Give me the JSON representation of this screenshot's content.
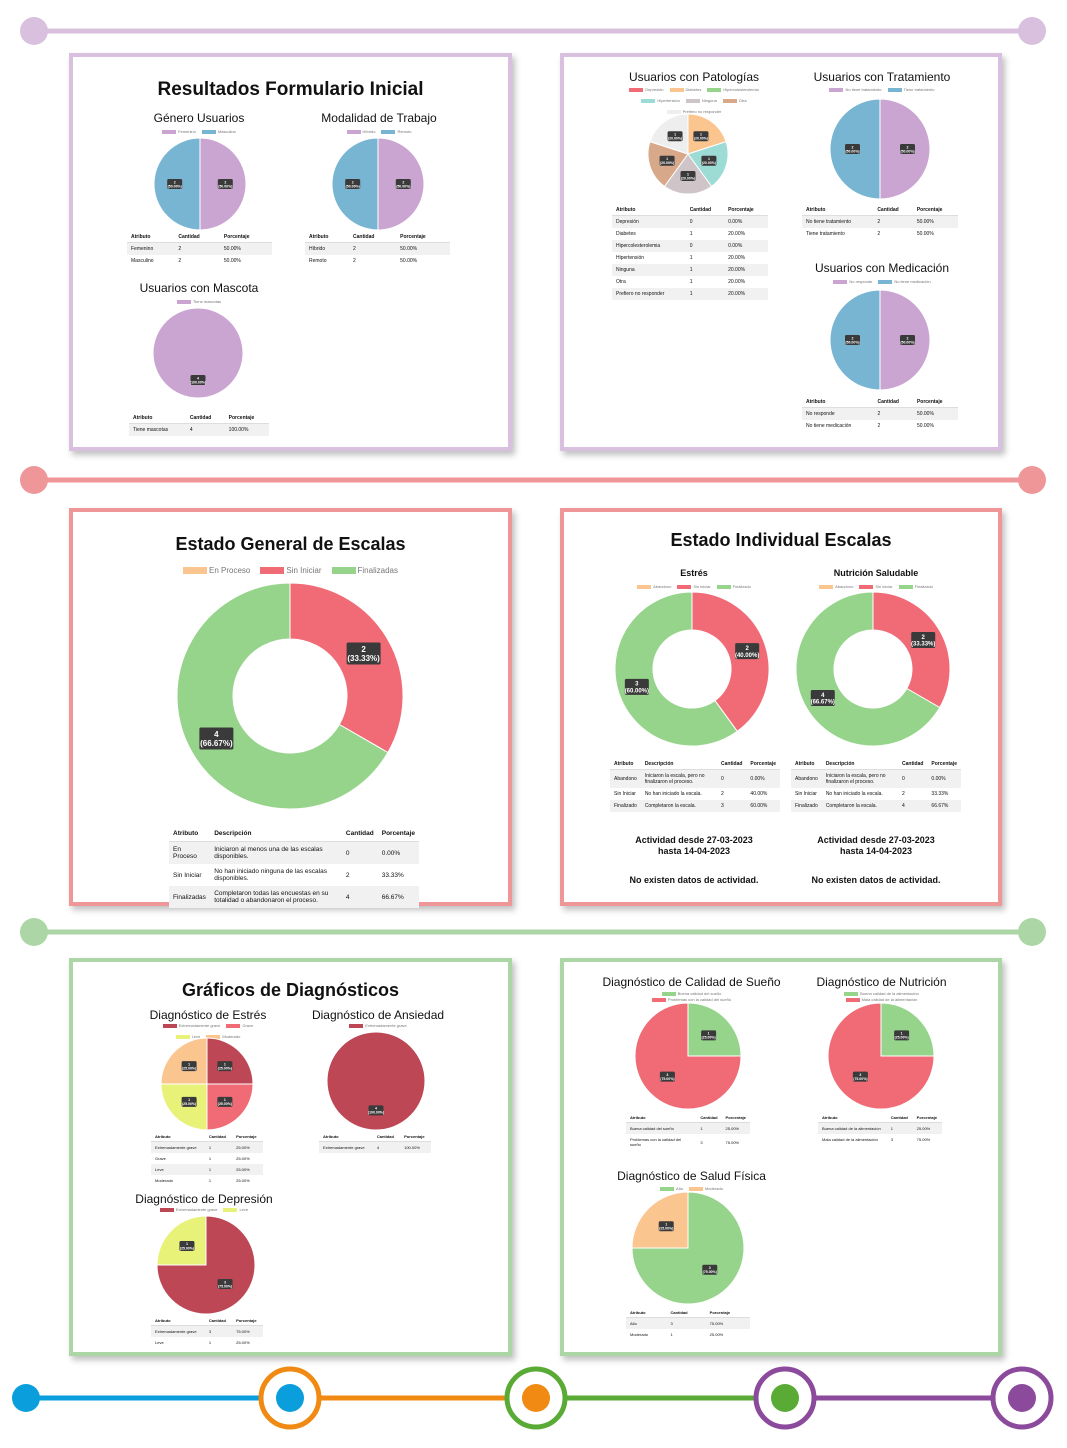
{
  "colors": {
    "purple_line": "#d8c0de",
    "red_line": "#ef9698",
    "green_line": "#acd6a6",
    "pink": "#cba5d2",
    "blue": "#78b5d3",
    "red": "#f06b76",
    "green": "#96d48b",
    "orange": "#fbc58f",
    "dark_red": "#bd4754",
    "yellow": "#e8f278",
    "teal": "#9cdcd5",
    "grey": "#cfc5c9",
    "tan": "#d8a88a",
    "light": "#eeeeee"
  },
  "panel1": {
    "title": "Resultados Formulario Inicial",
    "genero": {
      "title": "Género Usuarios",
      "legend": [
        "Femenino",
        "Masculino"
      ],
      "headers": [
        "Atributo",
        "Cantidad",
        "Porcentaje"
      ],
      "rows": [
        [
          "Femenino",
          "2",
          "50.00%"
        ],
        [
          "Masculino",
          "2",
          "50.00%"
        ]
      ]
    },
    "modalidad": {
      "title": "Modalidad de Trabajo",
      "legend": [
        "Híbrido",
        "Remoto"
      ],
      "headers": [
        "Atributo",
        "Cantidad",
        "Porcentaje"
      ],
      "rows": [
        [
          "Híbrido",
          "2",
          "50.00%"
        ],
        [
          "Remoto",
          "2",
          "50.00%"
        ]
      ]
    },
    "mascota": {
      "title": "Usuarios con Mascota",
      "legend": [
        "Tiene mascotas"
      ],
      "headers": [
        "Atributo",
        "Cantidad",
        "Porcentaje"
      ],
      "rows": [
        [
          "Tiene mascotas",
          "4",
          "100.00%"
        ]
      ]
    }
  },
  "panel2": {
    "patologias": {
      "title": "Usuarios con Patologías",
      "legend": [
        "Depresión",
        "Diabetes",
        "Hipercolesterolemia",
        "Hipertensión",
        "Ninguna",
        "Otra",
        "Prefiero no responder"
      ],
      "headers": [
        "Atributo",
        "Cantidad",
        "Porcentaje"
      ],
      "rows": [
        [
          "Depresión",
          "0",
          "0.00%"
        ],
        [
          "Diabetes",
          "1",
          "20.00%"
        ],
        [
          "Hipercolesterolemia",
          "0",
          "0.00%"
        ],
        [
          "Hipertensión",
          "1",
          "20.00%"
        ],
        [
          "Ninguna",
          "1",
          "20.00%"
        ],
        [
          "Otra",
          "1",
          "20.00%"
        ],
        [
          "Prefiero no responder",
          "1",
          "20.00%"
        ]
      ]
    },
    "tratamiento": {
      "title": "Usuarios con Tratamiento",
      "legend": [
        "No tiene tratamiento",
        "Tiene tratamiento"
      ],
      "headers": [
        "Atributo",
        "Cantidad",
        "Porcentaje"
      ],
      "rows": [
        [
          "No tiene tratamiento",
          "2",
          "50.00%"
        ],
        [
          "Tiene tratamiento",
          "2",
          "50.00%"
        ]
      ]
    },
    "medicacion": {
      "title": "Usuarios con Medicación",
      "legend": [
        "No responde",
        "No tiene medicación"
      ],
      "headers": [
        "Atributo",
        "Cantidad",
        "Porcentaje"
      ],
      "rows": [
        [
          "No responde",
          "2",
          "50.00%"
        ],
        [
          "No tiene medicación",
          "2",
          "50.00%"
        ]
      ]
    }
  },
  "panel3": {
    "title": "Estado General de Escalas",
    "legend": [
      "En Proceso",
      "Sin Iniciar",
      "Finalizadas"
    ],
    "headers": [
      "Atributo",
      "Descripción",
      "Cantidad",
      "Porcentaje"
    ],
    "rows": [
      [
        "En Proceso",
        "Iniciaron al menos una de las escalas disponibles.",
        "0",
        "0.00%"
      ],
      [
        "Sin Iniciar",
        "No han iniciado ninguna de las escalas disponibles.",
        "2",
        "33.33%"
      ],
      [
        "Finalizadas",
        "Completaron todas las encuestas en su totalidad o abandonaron el proceso.",
        "4",
        "66.67%"
      ]
    ]
  },
  "panel4": {
    "title": "Estado Individual Escalas",
    "estres": {
      "title": "Estrés",
      "legend": [
        "Abandono",
        "Sin iniciar",
        "Finalizado"
      ],
      "headers": [
        "Atributo",
        "Descripción",
        "Cantidad",
        "Porcentaje"
      ],
      "rows": [
        [
          "Abandono",
          "Iniciaron la escala, pero no finalizaron el proceso.",
          "0",
          "0.00%"
        ],
        [
          "Sin Iniciar",
          "No han iniciado la escala.",
          "2",
          "40.00%"
        ],
        [
          "Finalizado",
          "Completaron la escala.",
          "3",
          "60.00%"
        ]
      ],
      "activity": "Actividad desde 27-03-2023",
      "activity2": "hasta 14-04-2023",
      "no_data": "No existen datos de actividad."
    },
    "nutricion": {
      "title": "Nutrición Saludable",
      "legend": [
        "Abandono",
        "Sin iniciar",
        "Finalizado"
      ],
      "headers": [
        "Atributo",
        "Descripción",
        "Cantidad",
        "Porcentaje"
      ],
      "rows": [
        [
          "Abandono",
          "Iniciaron la escala, pero no finalizaron el proceso.",
          "0",
          "0.00%"
        ],
        [
          "Sin Iniciar",
          "No han iniciado la escala.",
          "2",
          "33.33%"
        ],
        [
          "Finalizado",
          "Completaron la escala.",
          "4",
          "66.67%"
        ]
      ],
      "activity": "Actividad desde 27-03-2023",
      "activity2": "hasta 14-04-2023",
      "no_data": "No existen datos de actividad."
    }
  },
  "panel5": {
    "title": "Gráficos de Diagnósticos",
    "estres": {
      "title": "Diagnóstico de Estrés",
      "legend": [
        "Extremadamente grave",
        "Grave",
        "Leve",
        "Moderado"
      ],
      "headers": [
        "Atributo",
        "Cantidad",
        "Porcentaje"
      ],
      "rows": [
        [
          "Extremadamente grave",
          "1",
          "25.00%"
        ],
        [
          "Grave",
          "1",
          "25.00%"
        ],
        [
          "Leve",
          "1",
          "25.00%"
        ],
        [
          "Moderado",
          "1",
          "25.00%"
        ]
      ]
    },
    "ansiedad": {
      "title": "Diagnóstico de Ansiedad",
      "legend": [
        "Extremadamente grave"
      ],
      "headers": [
        "Atributo",
        "Cantidad",
        "Porcentaje"
      ],
      "rows": [
        [
          "Extremadamente grave",
          "4",
          "100.00%"
        ]
      ]
    },
    "depresion": {
      "title": "Diagnóstico de Depresión",
      "legend": [
        "Extremadamente grave",
        "Leve"
      ],
      "headers": [
        "Atributo",
        "Cantidad",
        "Porcentaje"
      ],
      "rows": [
        [
          "Extremadamente grave",
          "3",
          "75.00%"
        ],
        [
          "Leve",
          "1",
          "25.00%"
        ]
      ]
    }
  },
  "panel6": {
    "sueno": {
      "title": "Diagnóstico de Calidad de Sueño",
      "legend": [
        "Buena calidad del sueño",
        "Problemas con la calidad del sueño"
      ],
      "headers": [
        "Atributo",
        "Cantidad",
        "Porcentaje"
      ],
      "rows": [
        [
          "Buena calidad del sueño",
          "1",
          "25.00%"
        ],
        [
          "Problemas con la calidad del sueño",
          "3",
          "75.00%"
        ]
      ]
    },
    "nutricion": {
      "title": "Diagnóstico de Nutrición",
      "legend": [
        "Buena calidad de la alimentación",
        "Mala calidad de la alimentación"
      ],
      "headers": [
        "Atributo",
        "Cantidad",
        "Porcentaje"
      ],
      "rows": [
        [
          "Buena calidad de la alimentación",
          "1",
          "25.00%"
        ],
        [
          "Mala calidad de la alimentación",
          "3",
          "75.00%"
        ]
      ]
    },
    "salud": {
      "title": "Diagnóstico de Salud Física",
      "legend": [
        "Alto",
        "Moderado"
      ],
      "headers": [
        "Atributo",
        "Cantidad",
        "Porcentaje"
      ],
      "rows": [
        [
          "Alto",
          "3",
          "75.00%"
        ],
        [
          "Moderado",
          "1",
          "25.00%"
        ]
      ]
    }
  },
  "chart_data": [
    {
      "id": "genero",
      "type": "pie",
      "categories": [
        "Femenino",
        "Masculino"
      ],
      "values": [
        2,
        2
      ],
      "labels": [
        "2",
        "2"
      ],
      "pct": [
        "(50.00%)",
        "(50.00%)"
      ]
    },
    {
      "id": "modalidad",
      "type": "pie",
      "categories": [
        "Híbrido",
        "Remoto"
      ],
      "values": [
        2,
        2
      ],
      "labels": [
        "2",
        "2"
      ],
      "pct": [
        "(50.00%)",
        "(50.00%)"
      ]
    },
    {
      "id": "mascota",
      "type": "pie",
      "categories": [
        "Tiene mascotas"
      ],
      "values": [
        4
      ],
      "labels": [
        "4"
      ],
      "pct": [
        "(100.00%)"
      ]
    },
    {
      "id": "patologias",
      "type": "pie",
      "categories": [
        "Diabetes",
        "Hipertensión",
        "Ninguna",
        "Otra",
        "Prefiero no responder"
      ],
      "values": [
        1,
        1,
        1,
        1,
        1
      ],
      "labels": [
        "1",
        "1",
        "1",
        "1",
        "1"
      ],
      "pct": [
        "(20.00%)",
        "(20.00%)",
        "(20.00%)",
        "(20.00%)",
        "(20.00%)"
      ]
    },
    {
      "id": "tratamiento",
      "type": "pie",
      "categories": [
        "No tiene tratamiento",
        "Tiene tratamiento"
      ],
      "values": [
        2,
        2
      ],
      "labels": [
        "2",
        "2"
      ],
      "pct": [
        "(50.00%)",
        "(50.00%)"
      ]
    },
    {
      "id": "medicacion",
      "type": "pie",
      "categories": [
        "No responde",
        "No tiene medicación"
      ],
      "values": [
        2,
        2
      ],
      "labels": [
        "2",
        "2"
      ],
      "pct": [
        "(50.00%)",
        "(50.00%)"
      ]
    },
    {
      "id": "general",
      "type": "doughnut",
      "categories": [
        "Sin Iniciar",
        "Finalizadas"
      ],
      "values": [
        2,
        4
      ],
      "labels": [
        "2",
        "4"
      ],
      "pct": [
        "(33.33%)",
        "(66.67%)"
      ]
    },
    {
      "id": "ind_estres",
      "type": "doughnut",
      "categories": [
        "Sin iniciar",
        "Finalizado"
      ],
      "values": [
        2,
        3
      ],
      "labels": [
        "2",
        "3"
      ],
      "pct": [
        "(40.00%)",
        "(60.00%)"
      ]
    },
    {
      "id": "ind_nutricion",
      "type": "doughnut",
      "categories": [
        "Sin iniciar",
        "Finalizado"
      ],
      "values": [
        2,
        4
      ],
      "labels": [
        "2",
        "4"
      ],
      "pct": [
        "(33.33%)",
        "(66.67%)"
      ]
    },
    {
      "id": "dx_estres",
      "type": "pie",
      "categories": [
        "Extremadamente grave",
        "Grave",
        "Leve",
        "Moderado"
      ],
      "values": [
        1,
        1,
        1,
        1
      ],
      "labels": [
        "1",
        "1",
        "1",
        "1"
      ],
      "pct": [
        "(25.00%)",
        "(25.00%)",
        "(25.00%)",
        "(25.00%)"
      ]
    },
    {
      "id": "dx_ansiedad",
      "type": "pie",
      "categories": [
        "Extremadamente grave"
      ],
      "values": [
        4
      ],
      "labels": [
        "4"
      ],
      "pct": [
        "(100.00%)"
      ]
    },
    {
      "id": "dx_depresion",
      "type": "pie",
      "categories": [
        "Extremadamente grave",
        "Leve"
      ],
      "values": [
        3,
        1
      ],
      "labels": [
        "3",
        "1"
      ],
      "pct": [
        "(75.00%)",
        "(25.00%)"
      ]
    },
    {
      "id": "dx_sueno",
      "type": "pie",
      "categories": [
        "Buena calidad del sueño",
        "Problemas con la calidad del sueño"
      ],
      "values": [
        1,
        3
      ],
      "labels": [
        "1",
        "3"
      ],
      "pct": [
        "(25.00%)",
        "(75.00%)"
      ]
    },
    {
      "id": "dx_nutricion",
      "type": "pie",
      "categories": [
        "Buena calidad de la alimentación",
        "Mala calidad de la alimentación"
      ],
      "values": [
        1,
        3
      ],
      "labels": [
        "1",
        "3"
      ],
      "pct": [
        "(25.00%)",
        "(75.00%)"
      ]
    },
    {
      "id": "dx_salud",
      "type": "pie",
      "categories": [
        "Alto",
        "Moderado"
      ],
      "values": [
        3,
        1
      ],
      "labels": [
        "3",
        "1"
      ],
      "pct": [
        "(75.00%)",
        "(25.00%)"
      ]
    }
  ]
}
